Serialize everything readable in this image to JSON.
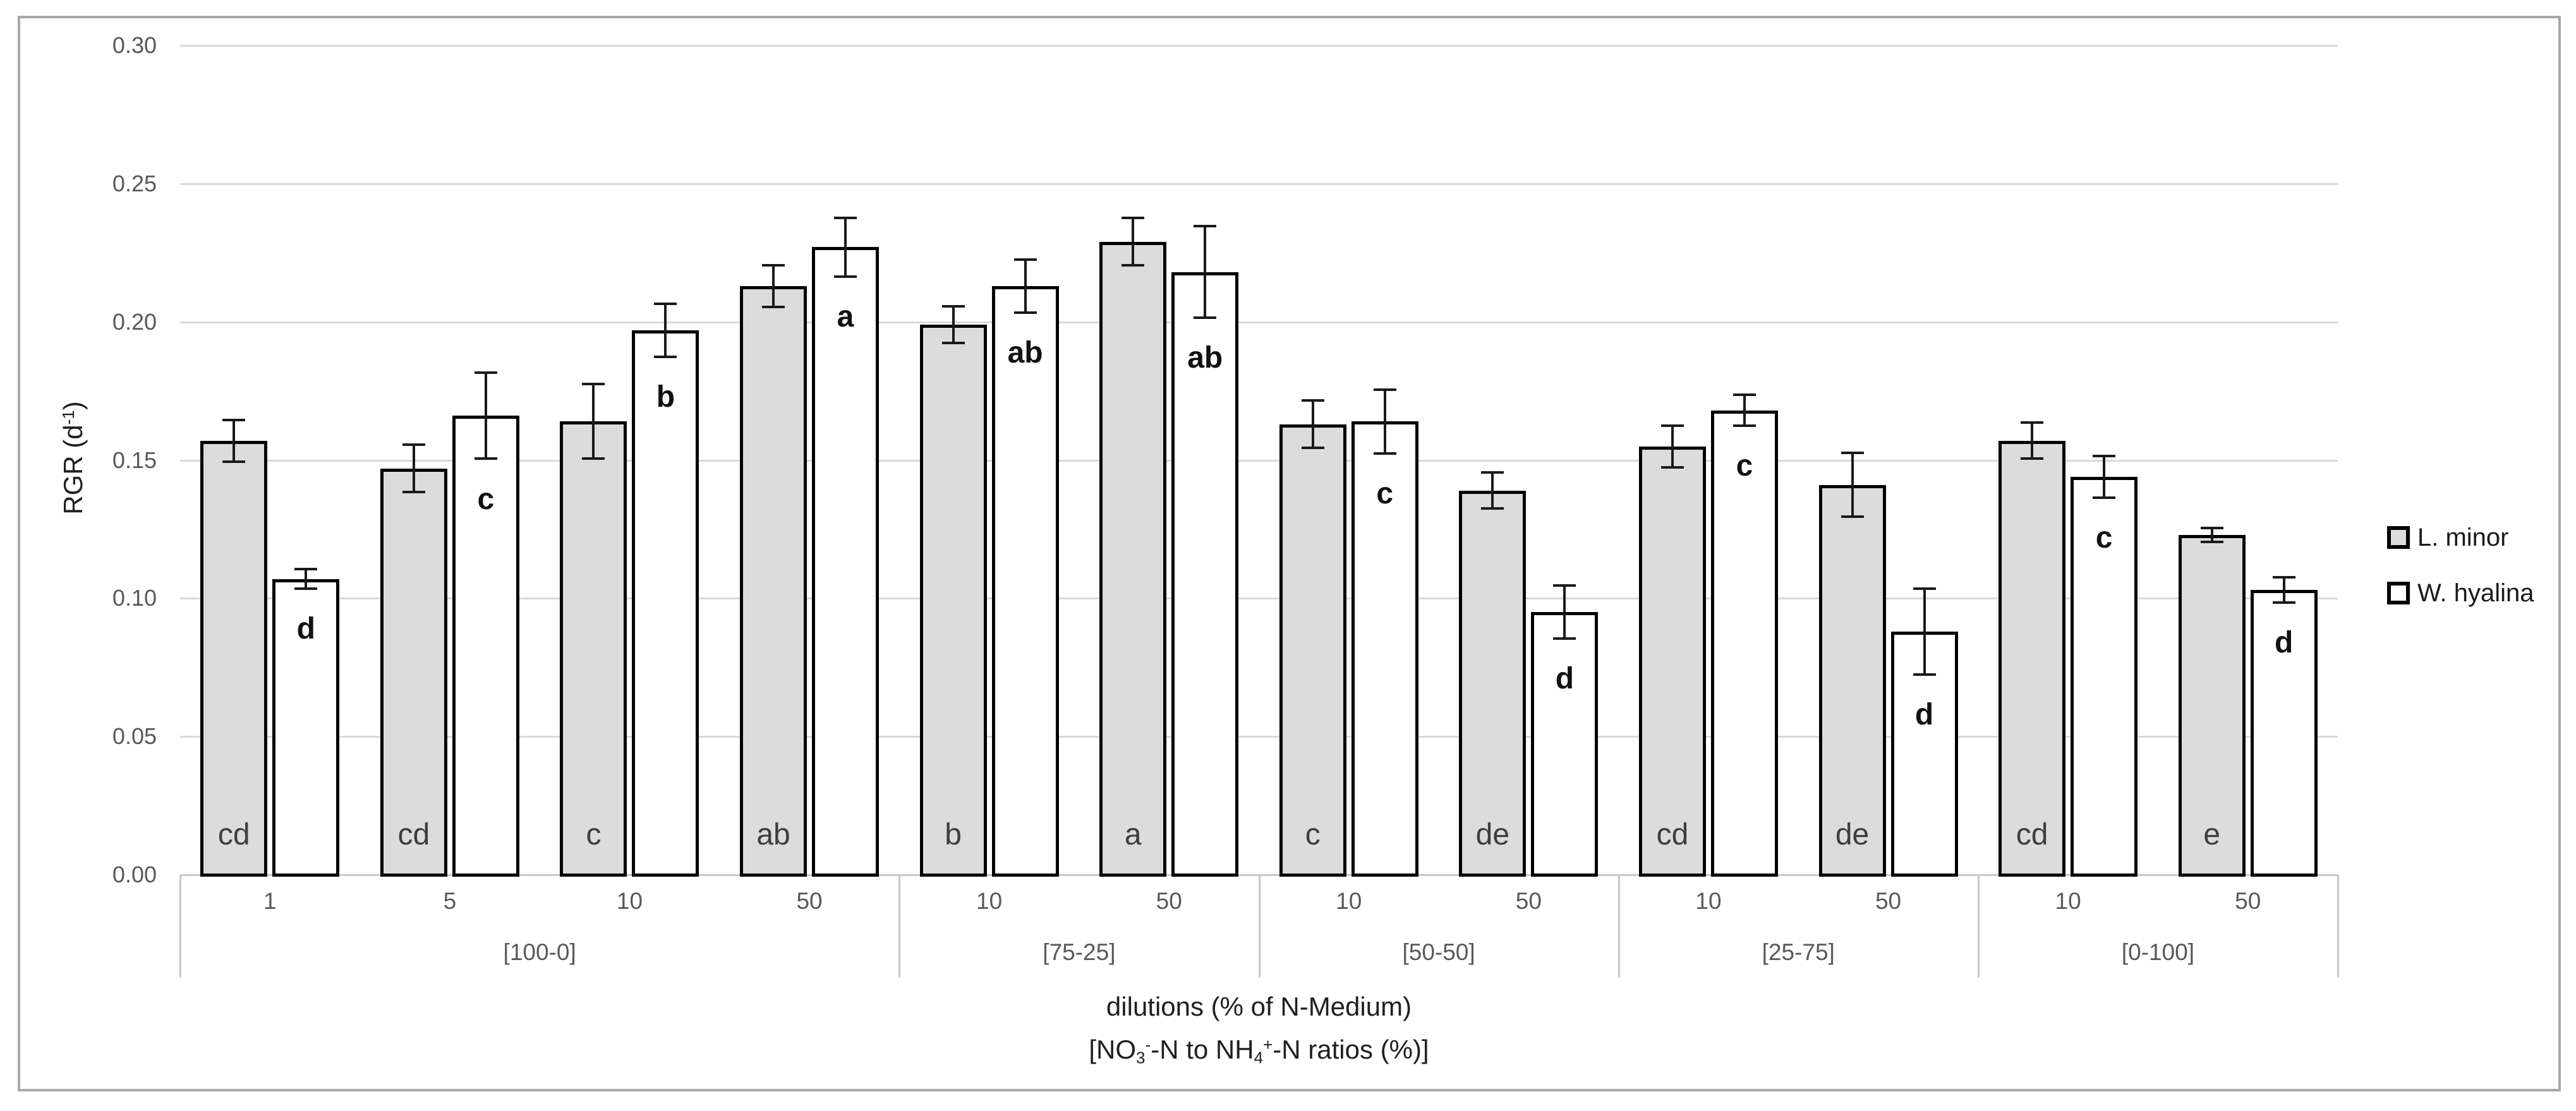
{
  "figure": {
    "border_color": "#a8a8a8",
    "background": "#ffffff"
  },
  "colors": {
    "gridline": "#d9d9d9",
    "axis_line": "#c9c9c9",
    "bar_border": "#000000",
    "error_bar": "#1a1a1a",
    "tick_label": "#595959",
    "axis_title": "#1f1f1f",
    "letter_regular": "#3d3d3d",
    "letter_bold": "#111111",
    "series_lminor_fill": "#dcdcdc",
    "series_whyalina_fill": "#ffffff"
  },
  "chart_data": {
    "type": "bar",
    "title": "",
    "ylabel_segments": [
      {
        "t": "RGR (d"
      },
      {
        "t": "-1",
        "sup": true
      },
      {
        "t": ")"
      }
    ],
    "xlabel_line1": "dilutions (% of N-Medium)",
    "xlabel_line2_segments": [
      {
        "t": "[NO"
      },
      {
        "t": "3",
        "sub": true
      },
      {
        "t": "-",
        "sup": true
      },
      {
        "t": "-N to NH"
      },
      {
        "t": "4",
        "sub": true
      },
      {
        "t": "+",
        "sup": true
      },
      {
        "t": "-N ratios (%)]"
      }
    ],
    "ylim": [
      0,
      0.3
    ],
    "ytick_step": 0.05,
    "ytick_labels": [
      "0.00",
      "0.05",
      "0.10",
      "0.15",
      "0.20",
      "0.25",
      "0.30"
    ],
    "grid": true,
    "legend_position": "right",
    "groups": [
      {
        "label": "[100-0]",
        "dilutions": [
          "1",
          "5",
          "10",
          "50"
        ]
      },
      {
        "label": "[75-25]",
        "dilutions": [
          "10",
          "50"
        ]
      },
      {
        "label": "[50-50]",
        "dilutions": [
          "10",
          "50"
        ]
      },
      {
        "label": "[25-75]",
        "dilutions": [
          "10",
          "50"
        ]
      },
      {
        "label": "[0-100]",
        "dilutions": [
          "10",
          "50"
        ]
      }
    ],
    "series": [
      {
        "name": "L. minor",
        "fill": "#dcdcdc",
        "letter_style": "gray",
        "points": [
          {
            "group": "[100-0]",
            "dilution": "1",
            "value": 0.157,
            "error": 0.008,
            "letter": "cd"
          },
          {
            "group": "[100-0]",
            "dilution": "5",
            "value": 0.147,
            "error": 0.009,
            "letter": "cd"
          },
          {
            "group": "[100-0]",
            "dilution": "10",
            "value": 0.164,
            "error": 0.014,
            "letter": "c"
          },
          {
            "group": "[100-0]",
            "dilution": "50",
            "value": 0.213,
            "error": 0.008,
            "letter": "ab"
          },
          {
            "group": "[75-25]",
            "dilution": "10",
            "value": 0.199,
            "error": 0.007,
            "letter": "b"
          },
          {
            "group": "[75-25]",
            "dilution": "50",
            "value": 0.229,
            "error": 0.009,
            "letter": "a"
          },
          {
            "group": "[50-50]",
            "dilution": "10",
            "value": 0.163,
            "error": 0.009,
            "letter": "c"
          },
          {
            "group": "[50-50]",
            "dilution": "50",
            "value": 0.139,
            "error": 0.007,
            "letter": "de"
          },
          {
            "group": "[25-75]",
            "dilution": "10",
            "value": 0.155,
            "error": 0.008,
            "letter": "cd"
          },
          {
            "group": "[25-75]",
            "dilution": "50",
            "value": 0.141,
            "error": 0.012,
            "letter": "de"
          },
          {
            "group": "[0-100]",
            "dilution": "10",
            "value": 0.157,
            "error": 0.007,
            "letter": "cd"
          },
          {
            "group": "[0-100]",
            "dilution": "50",
            "value": 0.123,
            "error": 0.003,
            "letter": "e"
          }
        ]
      },
      {
        "name": "W. hyalina",
        "fill": "#ffffff",
        "letter_style": "white",
        "points": [
          {
            "group": "[100-0]",
            "dilution": "1",
            "value": 0.107,
            "error": 0.004,
            "letter": "d"
          },
          {
            "group": "[100-0]",
            "dilution": "5",
            "value": 0.166,
            "error": 0.016,
            "letter": "c"
          },
          {
            "group": "[100-0]",
            "dilution": "10",
            "value": 0.197,
            "error": 0.01,
            "letter": "b"
          },
          {
            "group": "[100-0]",
            "dilution": "50",
            "value": 0.227,
            "error": 0.011,
            "letter": "a"
          },
          {
            "group": "[75-25]",
            "dilution": "10",
            "value": 0.213,
            "error": 0.01,
            "letter": "ab"
          },
          {
            "group": "[75-25]",
            "dilution": "50",
            "value": 0.218,
            "error": 0.017,
            "letter": "ab"
          },
          {
            "group": "[50-50]",
            "dilution": "10",
            "value": 0.164,
            "error": 0.012,
            "letter": "c"
          },
          {
            "group": "[50-50]",
            "dilution": "50",
            "value": 0.095,
            "error": 0.01,
            "letter": "d"
          },
          {
            "group": "[25-75]",
            "dilution": "10",
            "value": 0.168,
            "error": 0.006,
            "letter": "c"
          },
          {
            "group": "[25-75]",
            "dilution": "50",
            "value": 0.088,
            "error": 0.016,
            "letter": "d"
          },
          {
            "group": "[0-100]",
            "dilution": "10",
            "value": 0.144,
            "error": 0.008,
            "letter": "c"
          },
          {
            "group": "[0-100]",
            "dilution": "50",
            "value": 0.103,
            "error": 0.005,
            "letter": "d"
          }
        ]
      }
    ]
  }
}
